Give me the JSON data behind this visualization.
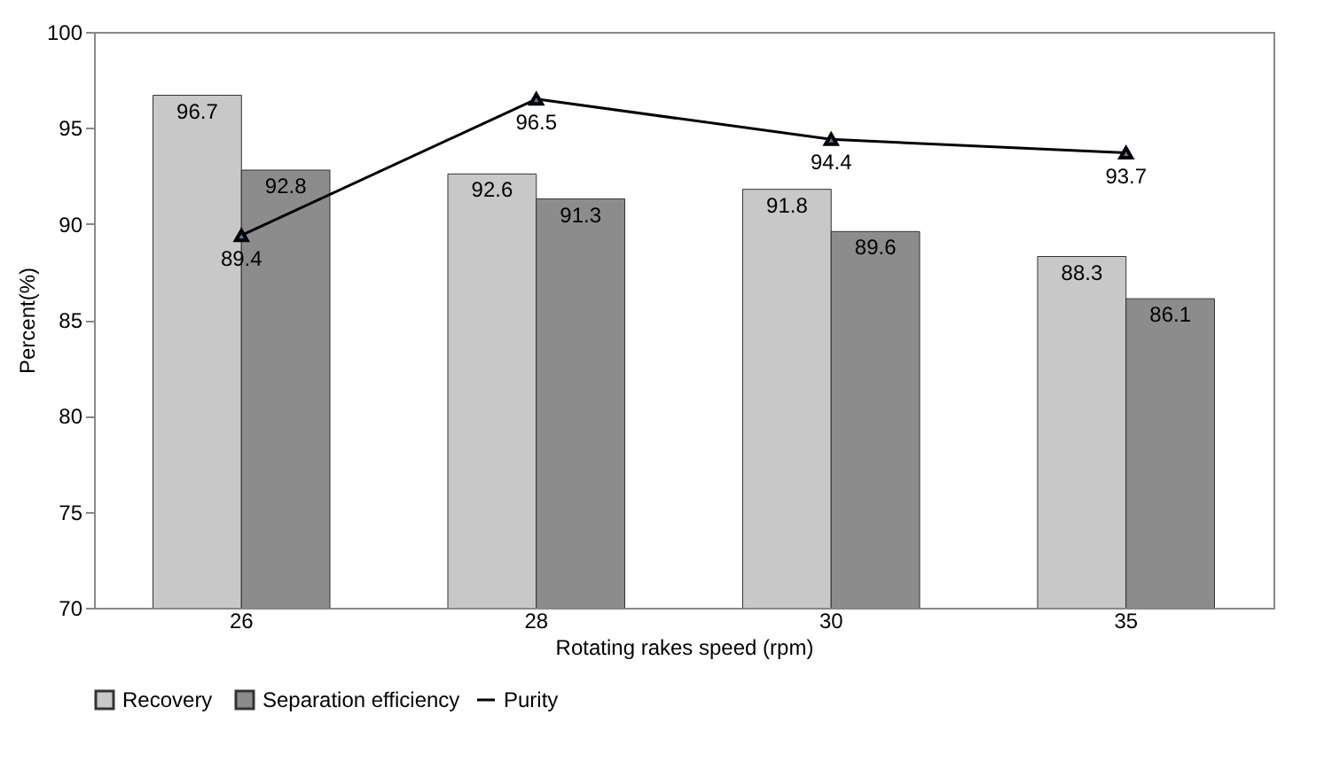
{
  "chart_data": {
    "type": "bar",
    "categories": [
      "26",
      "28",
      "30",
      "35"
    ],
    "xlabel": "Rotating rakes speed (rpm)",
    "ylabel": "Percent(%)",
    "ylim": [
      70,
      100
    ],
    "yticks": [
      70,
      75,
      80,
      85,
      90,
      95,
      100
    ],
    "grid": false,
    "legend": "bottom",
    "data_labels": true,
    "marker": "triangle",
    "series": [
      {
        "name": "Recovery",
        "color": "#c8c8c8",
        "values": [
          96.7,
          92.6,
          91.8,
          88.3
        ]
      },
      {
        "name": "Separation efficiency",
        "color": "#8c8c8c",
        "values": [
          92.8,
          91.3,
          89.6,
          86.1
        ]
      },
      {
        "name": "Purity",
        "type": "line",
        "color": "#000000",
        "values": [
          89.4,
          96.5,
          94.4,
          93.7
        ]
      }
    ]
  }
}
